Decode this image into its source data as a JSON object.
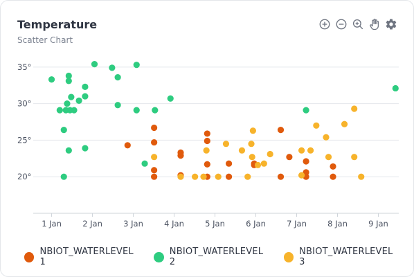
{
  "card": {
    "title": "Temperature",
    "subtitle": "Scatter Chart"
  },
  "toolbar": {
    "icons": [
      "zoom-in-icon",
      "zoom-out-icon",
      "reset-zoom-icon",
      "pan-hand-icon",
      "settings-gear-icon"
    ],
    "icon_color": "#6e7480",
    "active_color": "#6e7480"
  },
  "chart_data": {
    "type": "scatter",
    "title": "Temperature",
    "subtitle": "Scatter Chart",
    "xlabel": "",
    "ylabel": "",
    "x_unit": "days (Jan)",
    "xlim": [
      0.55,
      9.5
    ],
    "ylim": [
      15,
      36.5
    ],
    "x_ticks": [
      {
        "value": 1,
        "label": "1 Jan"
      },
      {
        "value": 2,
        "label": "2 Jan"
      },
      {
        "value": 3,
        "label": "3 Jan"
      },
      {
        "value": 4,
        "label": "4 Jan"
      },
      {
        "value": 5,
        "label": "5 Jan"
      },
      {
        "value": 6,
        "label": "6 Jan"
      },
      {
        "value": 7,
        "label": "7 Jan"
      },
      {
        "value": 8,
        "label": "8 Jan"
      },
      {
        "value": 9,
        "label": "9 Jan"
      }
    ],
    "y_ticks": [
      {
        "value": 20,
        "label": "20°"
      },
      {
        "value": 25,
        "label": "25°"
      },
      {
        "value": 30,
        "label": "30°"
      },
      {
        "value": 35,
        "label": "35°"
      }
    ],
    "grid": true,
    "legend_position": "bottom",
    "series": [
      {
        "name": "NBIOT_WATERLEVEL 1",
        "color": "#e05a0c",
        "points": [
          [
            2.86,
            24.3
          ],
          [
            3.51,
            26.7
          ],
          [
            3.51,
            24.7
          ],
          [
            3.51,
            20.9
          ],
          [
            3.51,
            20.0
          ],
          [
            4.16,
            23.3
          ],
          [
            4.16,
            22.9
          ],
          [
            4.16,
            20.2
          ],
          [
            4.81,
            25.9
          ],
          [
            4.81,
            24.9
          ],
          [
            4.81,
            21.7
          ],
          [
            4.81,
            20.0
          ],
          [
            5.34,
            21.8
          ],
          [
            5.34,
            20.0
          ],
          [
            5.96,
            21.8
          ],
          [
            5.96,
            21.6
          ],
          [
            6.61,
            26.4
          ],
          [
            6.61,
            20.0
          ],
          [
            6.82,
            22.7
          ],
          [
            7.23,
            22.1
          ],
          [
            7.23,
            20.6
          ],
          [
            7.23,
            20.0
          ],
          [
            7.89,
            21.4
          ],
          [
            7.89,
            20.0
          ]
        ]
      },
      {
        "name": "NBIOT_WATERLEVEL 2",
        "color": "#2ecc80",
        "points": [
          [
            1.0,
            33.3
          ],
          [
            1.2,
            29.1
          ],
          [
            1.3,
            26.4
          ],
          [
            1.3,
            20.0
          ],
          [
            1.35,
            29.1
          ],
          [
            1.38,
            30.0
          ],
          [
            1.42,
            33.8
          ],
          [
            1.42,
            33.1
          ],
          [
            1.45,
            29.1
          ],
          [
            1.42,
            23.6
          ],
          [
            1.48,
            30.9
          ],
          [
            1.55,
            29.1
          ],
          [
            1.67,
            30.4
          ],
          [
            1.82,
            32.3
          ],
          [
            1.82,
            31.0
          ],
          [
            1.82,
            23.9
          ],
          [
            2.05,
            35.4
          ],
          [
            2.48,
            34.9
          ],
          [
            2.62,
            33.6
          ],
          [
            2.62,
            29.8
          ],
          [
            3.08,
            35.3
          ],
          [
            3.08,
            29.1
          ],
          [
            3.28,
            21.8
          ],
          [
            3.53,
            29.1
          ],
          [
            3.91,
            30.7
          ],
          [
            7.23,
            29.1
          ],
          [
            9.42,
            32.1
          ]
        ]
      },
      {
        "name": "NBIOT_WATERLEVEL 3",
        "color": "#f7b32b",
        "points": [
          [
            3.51,
            22.7
          ],
          [
            4.16,
            20.0
          ],
          [
            4.51,
            20.0
          ],
          [
            4.72,
            20.0
          ],
          [
            4.79,
            23.6
          ],
          [
            5.08,
            20.0
          ],
          [
            5.27,
            24.5
          ],
          [
            5.66,
            23.6
          ],
          [
            5.8,
            20.0
          ],
          [
            5.89,
            24.5
          ],
          [
            5.91,
            22.7
          ],
          [
            5.93,
            26.3
          ],
          [
            6.05,
            21.6
          ],
          [
            6.2,
            21.8
          ],
          [
            6.35,
            23.1
          ],
          [
            7.12,
            23.6
          ],
          [
            7.12,
            20.2
          ],
          [
            7.34,
            23.6
          ],
          [
            7.48,
            27.0
          ],
          [
            7.72,
            25.4
          ],
          [
            7.78,
            22.7
          ],
          [
            8.17,
            27.2
          ],
          [
            8.41,
            29.3
          ],
          [
            8.41,
            22.7
          ],
          [
            8.58,
            20.0
          ]
        ]
      }
    ]
  }
}
